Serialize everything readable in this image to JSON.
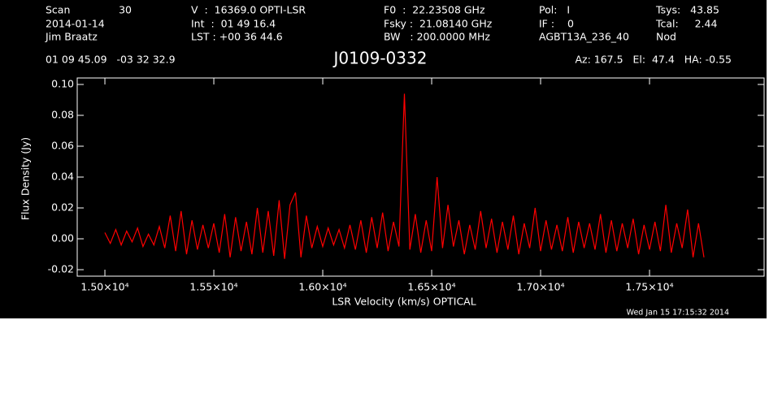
{
  "chart_data": {
    "type": "line",
    "title": "J0109-0332",
    "header": [
      "Scan",
      "30",
      "V  :  16369.0 OPTI-LSR",
      "F0  :  22.23508 GHz",
      "Pol:   I",
      "Tsys:   43.85",
      "2014-01-14",
      "Int  :  01 49 16.4",
      "Fsky :  21.08140 GHz",
      "IF :    0",
      "Tcal:     2.44",
      "Jim Braatz",
      "LST : +00 36 44.6",
      "BW   : 200.0000 MHz",
      "AGBT13A_236_40",
      "Nod",
      "01 09 45.09   -03 32 32.9",
      "Az: 167.5   El:  47.4   HA: -0.55"
    ],
    "timestamp": "Wed Jan 15 17:15:32 2014",
    "xlabel": "LSR Velocity (km/s) OPTICAL",
    "ylabel": "Flux Density (Jy)",
    "xlim": [
      14873,
      18026
    ],
    "ylim": [
      -0.0242,
      0.1042
    ],
    "xticks": [
      {
        "value": 15000,
        "label": "1.50×10⁴"
      },
      {
        "value": 15500,
        "label": "1.55×10⁴"
      },
      {
        "value": 16000,
        "label": "1.60×10⁴"
      },
      {
        "value": 16500,
        "label": "1.65×10⁴"
      },
      {
        "value": 17000,
        "label": "1.70×10⁴"
      },
      {
        "value": 17500,
        "label": "1.75×10⁴"
      }
    ],
    "yticks": [
      {
        "value": 0.1,
        "label": "0.10"
      },
      {
        "value": 0.08,
        "label": "0.08"
      },
      {
        "value": 0.06,
        "label": "0.06"
      },
      {
        "value": 0.04,
        "label": "0.04"
      },
      {
        "value": 0.02,
        "label": "0.02"
      },
      {
        "value": 0,
        "label": "0.00"
      },
      {
        "value": -0.02,
        "label": "-0.02"
      }
    ],
    "x": [
      15000,
      15025,
      15050,
      15075,
      15100,
      15125,
      15150,
      15175,
      15200,
      15225,
      15250,
      15275,
      15300,
      15325,
      15350,
      15375,
      15400,
      15425,
      15450,
      15475,
      15500,
      15525,
      15550,
      15575,
      15600,
      15625,
      15650,
      15675,
      15700,
      15725,
      15750,
      15775,
      15800,
      15825,
      15850,
      15875,
      15900,
      15925,
      15950,
      15975,
      16000,
      16025,
      16050,
      16075,
      16100,
      16125,
      16150,
      16175,
      16200,
      16225,
      16250,
      16275,
      16300,
      16325,
      16350,
      16375,
      16400,
      16425,
      16450,
      16475,
      16500,
      16525,
      16550,
      16575,
      16600,
      16625,
      16650,
      16675,
      16700,
      16725,
      16750,
      16775,
      16800,
      16825,
      16850,
      16875,
      16900,
      16925,
      16950,
      16975,
      17000,
      17025,
      17050,
      17075,
      17100,
      17125,
      17150,
      17175,
      17200,
      17225,
      17250,
      17275,
      17300,
      17325,
      17350,
      17375,
      17400,
      17425,
      17450,
      17475,
      17500,
      17525,
      17550,
      17575,
      17600,
      17625,
      17650,
      17675,
      17700,
      17725,
      17750
    ],
    "series": [
      {
        "color": "#ff0000",
        "values": [
          0.004,
          -0.003,
          0.006,
          -0.004,
          0.005,
          -0.002,
          0.007,
          -0.005,
          0.003,
          -0.004,
          0.008,
          -0.006,
          0.015,
          -0.008,
          0.018,
          -0.01,
          0.012,
          -0.007,
          0.009,
          -0.006,
          0.01,
          -0.009,
          0.016,
          -0.012,
          0.014,
          -0.008,
          0.011,
          -0.01,
          0.02,
          -0.009,
          0.018,
          -0.011,
          0.025,
          -0.013,
          0.022,
          0.03,
          -0.012,
          0.015,
          -0.006,
          0.008,
          -0.005,
          0.007,
          -0.004,
          0.006,
          -0.006,
          0.009,
          -0.007,
          0.012,
          -0.009,
          0.014,
          -0.006,
          0.017,
          -0.008,
          0.011,
          -0.005,
          0.094,
          -0.007,
          0.016,
          -0.009,
          0.012,
          -0.008,
          0.04,
          -0.006,
          0.022,
          -0.005,
          0.012,
          -0.01,
          0.009,
          -0.007,
          0.018,
          -0.006,
          0.013,
          -0.009,
          0.011,
          -0.007,
          0.015,
          -0.01,
          0.01,
          -0.006,
          0.02,
          -0.008,
          0.012,
          -0.007,
          0.009,
          -0.008,
          0.014,
          -0.009,
          0.011,
          -0.006,
          0.01,
          -0.007,
          0.016,
          -0.009,
          0.012,
          -0.008,
          0.01,
          -0.006,
          0.013,
          -0.01,
          0.009,
          -0.007,
          0.011,
          -0.008,
          0.022,
          -0.009,
          0.01,
          -0.006,
          0.019,
          -0.012,
          0.01,
          -0.012
        ]
      }
    ]
  }
}
